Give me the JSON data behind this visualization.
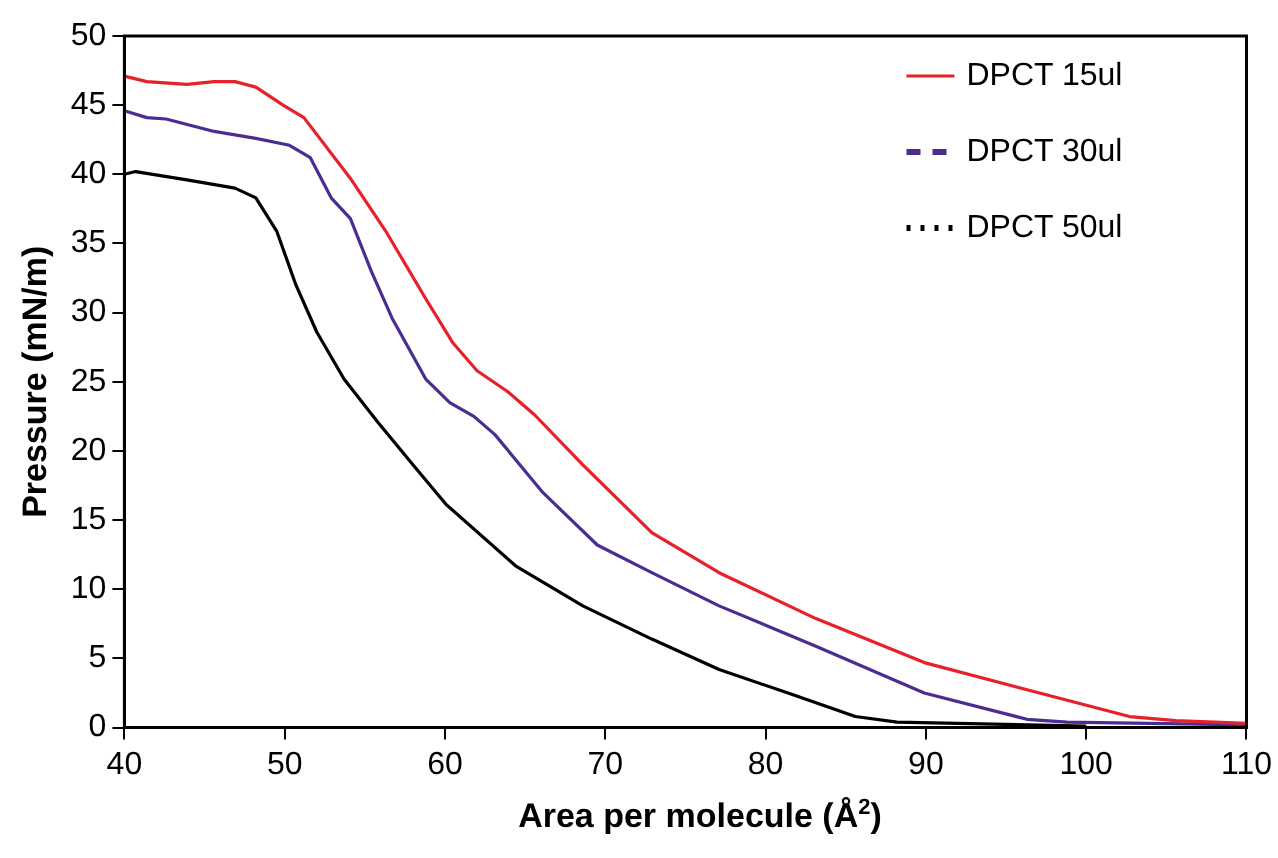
{
  "chart_data": {
    "type": "line",
    "xlabel": "Area per molecule (Å$^{2}$)",
    "ylabel": "Pressure (mN/m)",
    "xlim": [
      40,
      110
    ],
    "xticks": [
      40,
      50,
      60,
      70,
      80,
      90,
      100,
      110
    ],
    "ylim": [
      0,
      50
    ],
    "yticks": [
      0,
      5,
      10,
      15,
      20,
      25,
      30,
      35,
      40,
      45,
      50
    ],
    "grid": false,
    "legend": "top right",
    "marker": "none",
    "series": [
      {
        "name": "DPCT 15ul",
        "color": "#e8202a",
        "x": [
          40,
          41.4,
          43.9,
          45.6,
          46.9,
          48.2,
          49.9,
          51.2,
          54.1,
          56.3,
          58.8,
          60.5,
          62,
          63.9,
          65.6,
          68.6,
          72.9,
          77.1,
          83.1,
          89.9,
          98.4,
          102.7,
          105.6,
          110
        ],
        "values": [
          47.1,
          46.7,
          46.5,
          46.7,
          46.7,
          46.3,
          45,
          44.1,
          39.7,
          35.9,
          31,
          27.8,
          25.8,
          24.3,
          22.6,
          19,
          14.1,
          11.2,
          7.9,
          4.7,
          2.1,
          0.8,
          0.5,
          0.3
        ]
      },
      {
        "name": "DPCT 30ul",
        "color": "#4b2c91",
        "x": [
          40,
          41.4,
          42.6,
          45.6,
          48.2,
          50.3,
          51.6,
          52.9,
          54.1,
          55.4,
          56.7,
          58.8,
          60.3,
          61.8,
          63.1,
          66.1,
          69.5,
          72.9,
          77.1,
          83.1,
          89.9,
          96.3,
          98.8,
          110
        ],
        "values": [
          44.6,
          44.1,
          44,
          43.1,
          42.6,
          42.1,
          41.2,
          38.3,
          36.8,
          33,
          29.6,
          25.2,
          23.5,
          22.5,
          21.2,
          17,
          13.2,
          11.2,
          8.8,
          5.9,
          2.5,
          0.6,
          0.4,
          0.2
        ]
      },
      {
        "name": "DPCT 50ul",
        "color": "#000000",
        "x": [
          40,
          40.7,
          43.9,
          46.9,
          48.2,
          49.5,
          50.7,
          52,
          53.7,
          55.8,
          58,
          60.1,
          64.4,
          68.6,
          72.9,
          77.1,
          81.4,
          85.6,
          88.2,
          100
        ],
        "values": [
          40,
          40.2,
          39.6,
          39,
          38.3,
          35.9,
          32,
          28.6,
          25.2,
          22.1,
          19,
          16.1,
          11.7,
          8.8,
          6.4,
          4.2,
          2.5,
          0.8,
          0.4,
          0.1
        ]
      }
    ]
  }
}
